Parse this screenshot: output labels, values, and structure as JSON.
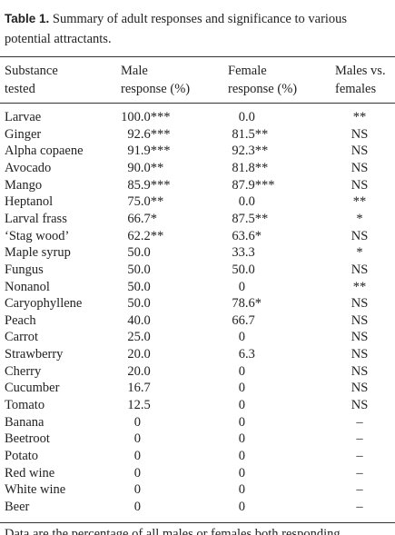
{
  "table": {
    "label": "Table 1.",
    "caption": "Summary of adult responses and significance to various potential attractants.",
    "headers": [
      [
        "Substance",
        "tested"
      ],
      [
        "Male",
        "response (%)"
      ],
      [
        "Female",
        "response (%)"
      ],
      [
        "Males vs.",
        "females"
      ]
    ],
    "rows": [
      [
        "Larvae",
        "100.0***",
        "0.0",
        "**"
      ],
      [
        "Ginger",
        "92.6***",
        "81.5**",
        "NS"
      ],
      [
        "Alpha copaene",
        "91.9***",
        "92.3**",
        "NS"
      ],
      [
        "Avocado",
        "90.0**",
        "81.8**",
        "NS"
      ],
      [
        "Mango",
        "85.9***",
        "87.9***",
        "NS"
      ],
      [
        "Heptanol",
        "75.0**",
        "0.0",
        "**"
      ],
      [
        "Larval frass",
        "66.7*",
        "87.5**",
        "*"
      ],
      [
        "‘Stag wood’",
        "62.2**",
        "63.6*",
        "NS"
      ],
      [
        "Maple syrup",
        "50.0",
        "33.3",
        "*"
      ],
      [
        "Fungus",
        "50.0",
        "50.0",
        "NS"
      ],
      [
        "Nonanol",
        "50.0",
        "0",
        "**"
      ],
      [
        "Caryophyllene",
        "50.0",
        "78.6*",
        "NS"
      ],
      [
        "Peach",
        "40.0",
        "66.7",
        "NS"
      ],
      [
        "Carrot",
        "25.0",
        "0",
        "NS"
      ],
      [
        "Strawberry",
        "20.0",
        "6.3",
        "NS"
      ],
      [
        "Cherry",
        "20.0",
        "0",
        "NS"
      ],
      [
        "Cucumber",
        "16.7",
        "0",
        "NS"
      ],
      [
        "Tomato",
        "12.5",
        "0",
        "NS"
      ],
      [
        "Banana",
        "0",
        "0",
        "–"
      ],
      [
        "Beetroot",
        "0",
        "0",
        "–"
      ],
      [
        "Potato",
        "0",
        "0",
        "–"
      ],
      [
        "Red wine",
        "0",
        "0",
        "–"
      ],
      [
        "White wine",
        "0",
        "0",
        "–"
      ],
      [
        "Beer",
        "0",
        "0",
        "–"
      ]
    ],
    "footnote": "Data are the percentage of all males or females both responding"
  }
}
